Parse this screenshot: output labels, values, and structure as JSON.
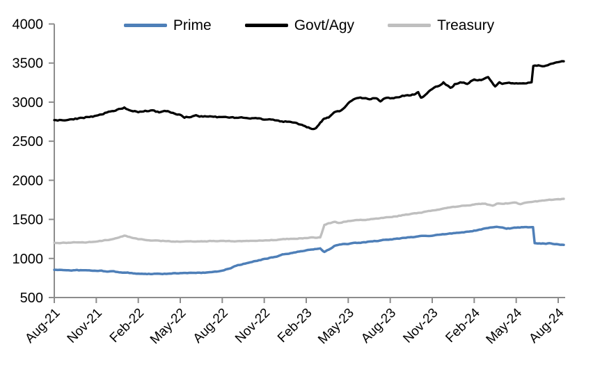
{
  "chart_data": {
    "type": "line",
    "title": "",
    "xlabel": "",
    "ylabel": "",
    "ylim": [
      500,
      4000
    ],
    "y_ticks": [
      500,
      1000,
      1500,
      2000,
      2500,
      3000,
      3500,
      4000
    ],
    "x_tick_labels": [
      "Aug-21",
      "Nov-21",
      "Feb-22",
      "May-22",
      "Aug-22",
      "Nov-22",
      "Feb-23",
      "May-23",
      "Aug-23",
      "Nov-23",
      "Feb-24",
      "May-24",
      "Aug-24"
    ],
    "x_months_range": [
      0,
      36.4
    ],
    "grid": false,
    "legend_position": "top",
    "axis_color": "#8c8c8c",
    "text_color": "#000000",
    "series": [
      {
        "name": "Prime",
        "color": "#4e7fb8",
        "points": [
          [
            0,
            855
          ],
          [
            1,
            850
          ],
          [
            2,
            848
          ],
          [
            3,
            842
          ],
          [
            4,
            835
          ],
          [
            5,
            820
          ],
          [
            6,
            806
          ],
          [
            7,
            800
          ],
          [
            8,
            803
          ],
          [
            9,
            812
          ],
          [
            10,
            814
          ],
          [
            11,
            822
          ],
          [
            12,
            845
          ],
          [
            12.5,
            870
          ],
          [
            13,
            905
          ],
          [
            14,
            950
          ],
          [
            15,
            995
          ],
          [
            16,
            1030
          ],
          [
            16.3,
            1052
          ],
          [
            17,
            1070
          ],
          [
            18,
            1105
          ],
          [
            19,
            1130
          ],
          [
            19.3,
            1085
          ],
          [
            19.6,
            1112
          ],
          [
            20,
            1160
          ],
          [
            20.5,
            1180
          ],
          [
            21,
            1185
          ],
          [
            22,
            1205
          ],
          [
            23,
            1222
          ],
          [
            24,
            1243
          ],
          [
            25,
            1262
          ],
          [
            26,
            1283
          ],
          [
            27,
            1292
          ],
          [
            28,
            1312
          ],
          [
            29,
            1330
          ],
          [
            30,
            1358
          ],
          [
            31,
            1390
          ],
          [
            31.5,
            1402
          ],
          [
            32,
            1398
          ],
          [
            32.3,
            1380
          ],
          [
            33,
            1392
          ],
          [
            33.5,
            1398
          ],
          [
            34.2,
            1400
          ],
          [
            34.32,
            1195
          ],
          [
            35,
            1190
          ],
          [
            35.5,
            1192
          ],
          [
            36,
            1180
          ],
          [
            36.4,
            1175
          ]
        ]
      },
      {
        "name": "Govt/Agy",
        "color": "#000000",
        "points": [
          [
            0,
            2770
          ],
          [
            1,
            2775
          ],
          [
            2,
            2800
          ],
          [
            3,
            2825
          ],
          [
            4,
            2880
          ],
          [
            5,
            2935
          ],
          [
            5.5,
            2890
          ],
          [
            6,
            2870
          ],
          [
            7,
            2895
          ],
          [
            7.5,
            2868
          ],
          [
            8,
            2880
          ],
          [
            8.7,
            2842
          ],
          [
            9,
            2838
          ],
          [
            9.3,
            2798
          ],
          [
            10,
            2825
          ],
          [
            11,
            2815
          ],
          [
            12,
            2810
          ],
          [
            13,
            2800
          ],
          [
            14,
            2790
          ],
          [
            15,
            2778
          ],
          [
            16,
            2765
          ],
          [
            17,
            2740
          ],
          [
            17.8,
            2700
          ],
          [
            18.4,
            2655
          ],
          [
            18.7,
            2668
          ],
          [
            19,
            2740
          ],
          [
            19.3,
            2790
          ],
          [
            19.6,
            2802
          ],
          [
            20,
            2870
          ],
          [
            20.5,
            2895
          ],
          [
            21,
            2985
          ],
          [
            21.5,
            3045
          ],
          [
            22,
            3050
          ],
          [
            22.5,
            3035
          ],
          [
            23,
            3050
          ],
          [
            23.3,
            3010
          ],
          [
            23.6,
            3045
          ],
          [
            24,
            3045
          ],
          [
            25,
            3080
          ],
          [
            25.7,
            3095
          ],
          [
            26,
            3130
          ],
          [
            26.2,
            3060
          ],
          [
            26.5,
            3090
          ],
          [
            27,
            3165
          ],
          [
            27.5,
            3210
          ],
          [
            27.8,
            3255
          ],
          [
            28,
            3220
          ],
          [
            28.3,
            3185
          ],
          [
            28.6,
            3230
          ],
          [
            29,
            3255
          ],
          [
            29.5,
            3230
          ],
          [
            30,
            3290
          ],
          [
            30.5,
            3280
          ],
          [
            31,
            3320
          ],
          [
            31.5,
            3205
          ],
          [
            31.8,
            3255
          ],
          [
            32,
            3235
          ],
          [
            32.5,
            3250
          ],
          [
            33,
            3245
          ],
          [
            33.5,
            3240
          ],
          [
            34.1,
            3252
          ],
          [
            34.22,
            3460
          ],
          [
            34.6,
            3470
          ],
          [
            35,
            3460
          ],
          [
            35.5,
            3490
          ],
          [
            36,
            3510
          ],
          [
            36.4,
            3520
          ]
        ]
      },
      {
        "name": "Treasury",
        "color": "#bfbfbf",
        "points": [
          [
            0,
            1200
          ],
          [
            1,
            1202
          ],
          [
            2,
            1208
          ],
          [
            3,
            1215
          ],
          [
            4,
            1242
          ],
          [
            5,
            1292
          ],
          [
            5.5,
            1268
          ],
          [
            6,
            1245
          ],
          [
            7,
            1228
          ],
          [
            8,
            1222
          ],
          [
            9,
            1212
          ],
          [
            10,
            1216
          ],
          [
            11,
            1222
          ],
          [
            12,
            1226
          ],
          [
            13,
            1220
          ],
          [
            14,
            1226
          ],
          [
            15,
            1232
          ],
          [
            16,
            1242
          ],
          [
            17,
            1252
          ],
          [
            18,
            1262
          ],
          [
            19,
            1270
          ],
          [
            19.12,
            1330
          ],
          [
            19.3,
            1432
          ],
          [
            19.6,
            1450
          ],
          [
            20,
            1468
          ],
          [
            20.3,
            1456
          ],
          [
            21,
            1480
          ],
          [
            22,
            1492
          ],
          [
            23,
            1512
          ],
          [
            24,
            1530
          ],
          [
            25,
            1556
          ],
          [
            26,
            1582
          ],
          [
            27,
            1614
          ],
          [
            28,
            1645
          ],
          [
            29,
            1668
          ],
          [
            30,
            1690
          ],
          [
            30.8,
            1702
          ],
          [
            31.3,
            1676
          ],
          [
            31.6,
            1700
          ],
          [
            32,
            1700
          ],
          [
            33,
            1714
          ],
          [
            33.3,
            1695
          ],
          [
            33.6,
            1712
          ],
          [
            34,
            1722
          ],
          [
            35,
            1740
          ],
          [
            36,
            1758
          ],
          [
            36.4,
            1762
          ]
        ]
      }
    ]
  }
}
